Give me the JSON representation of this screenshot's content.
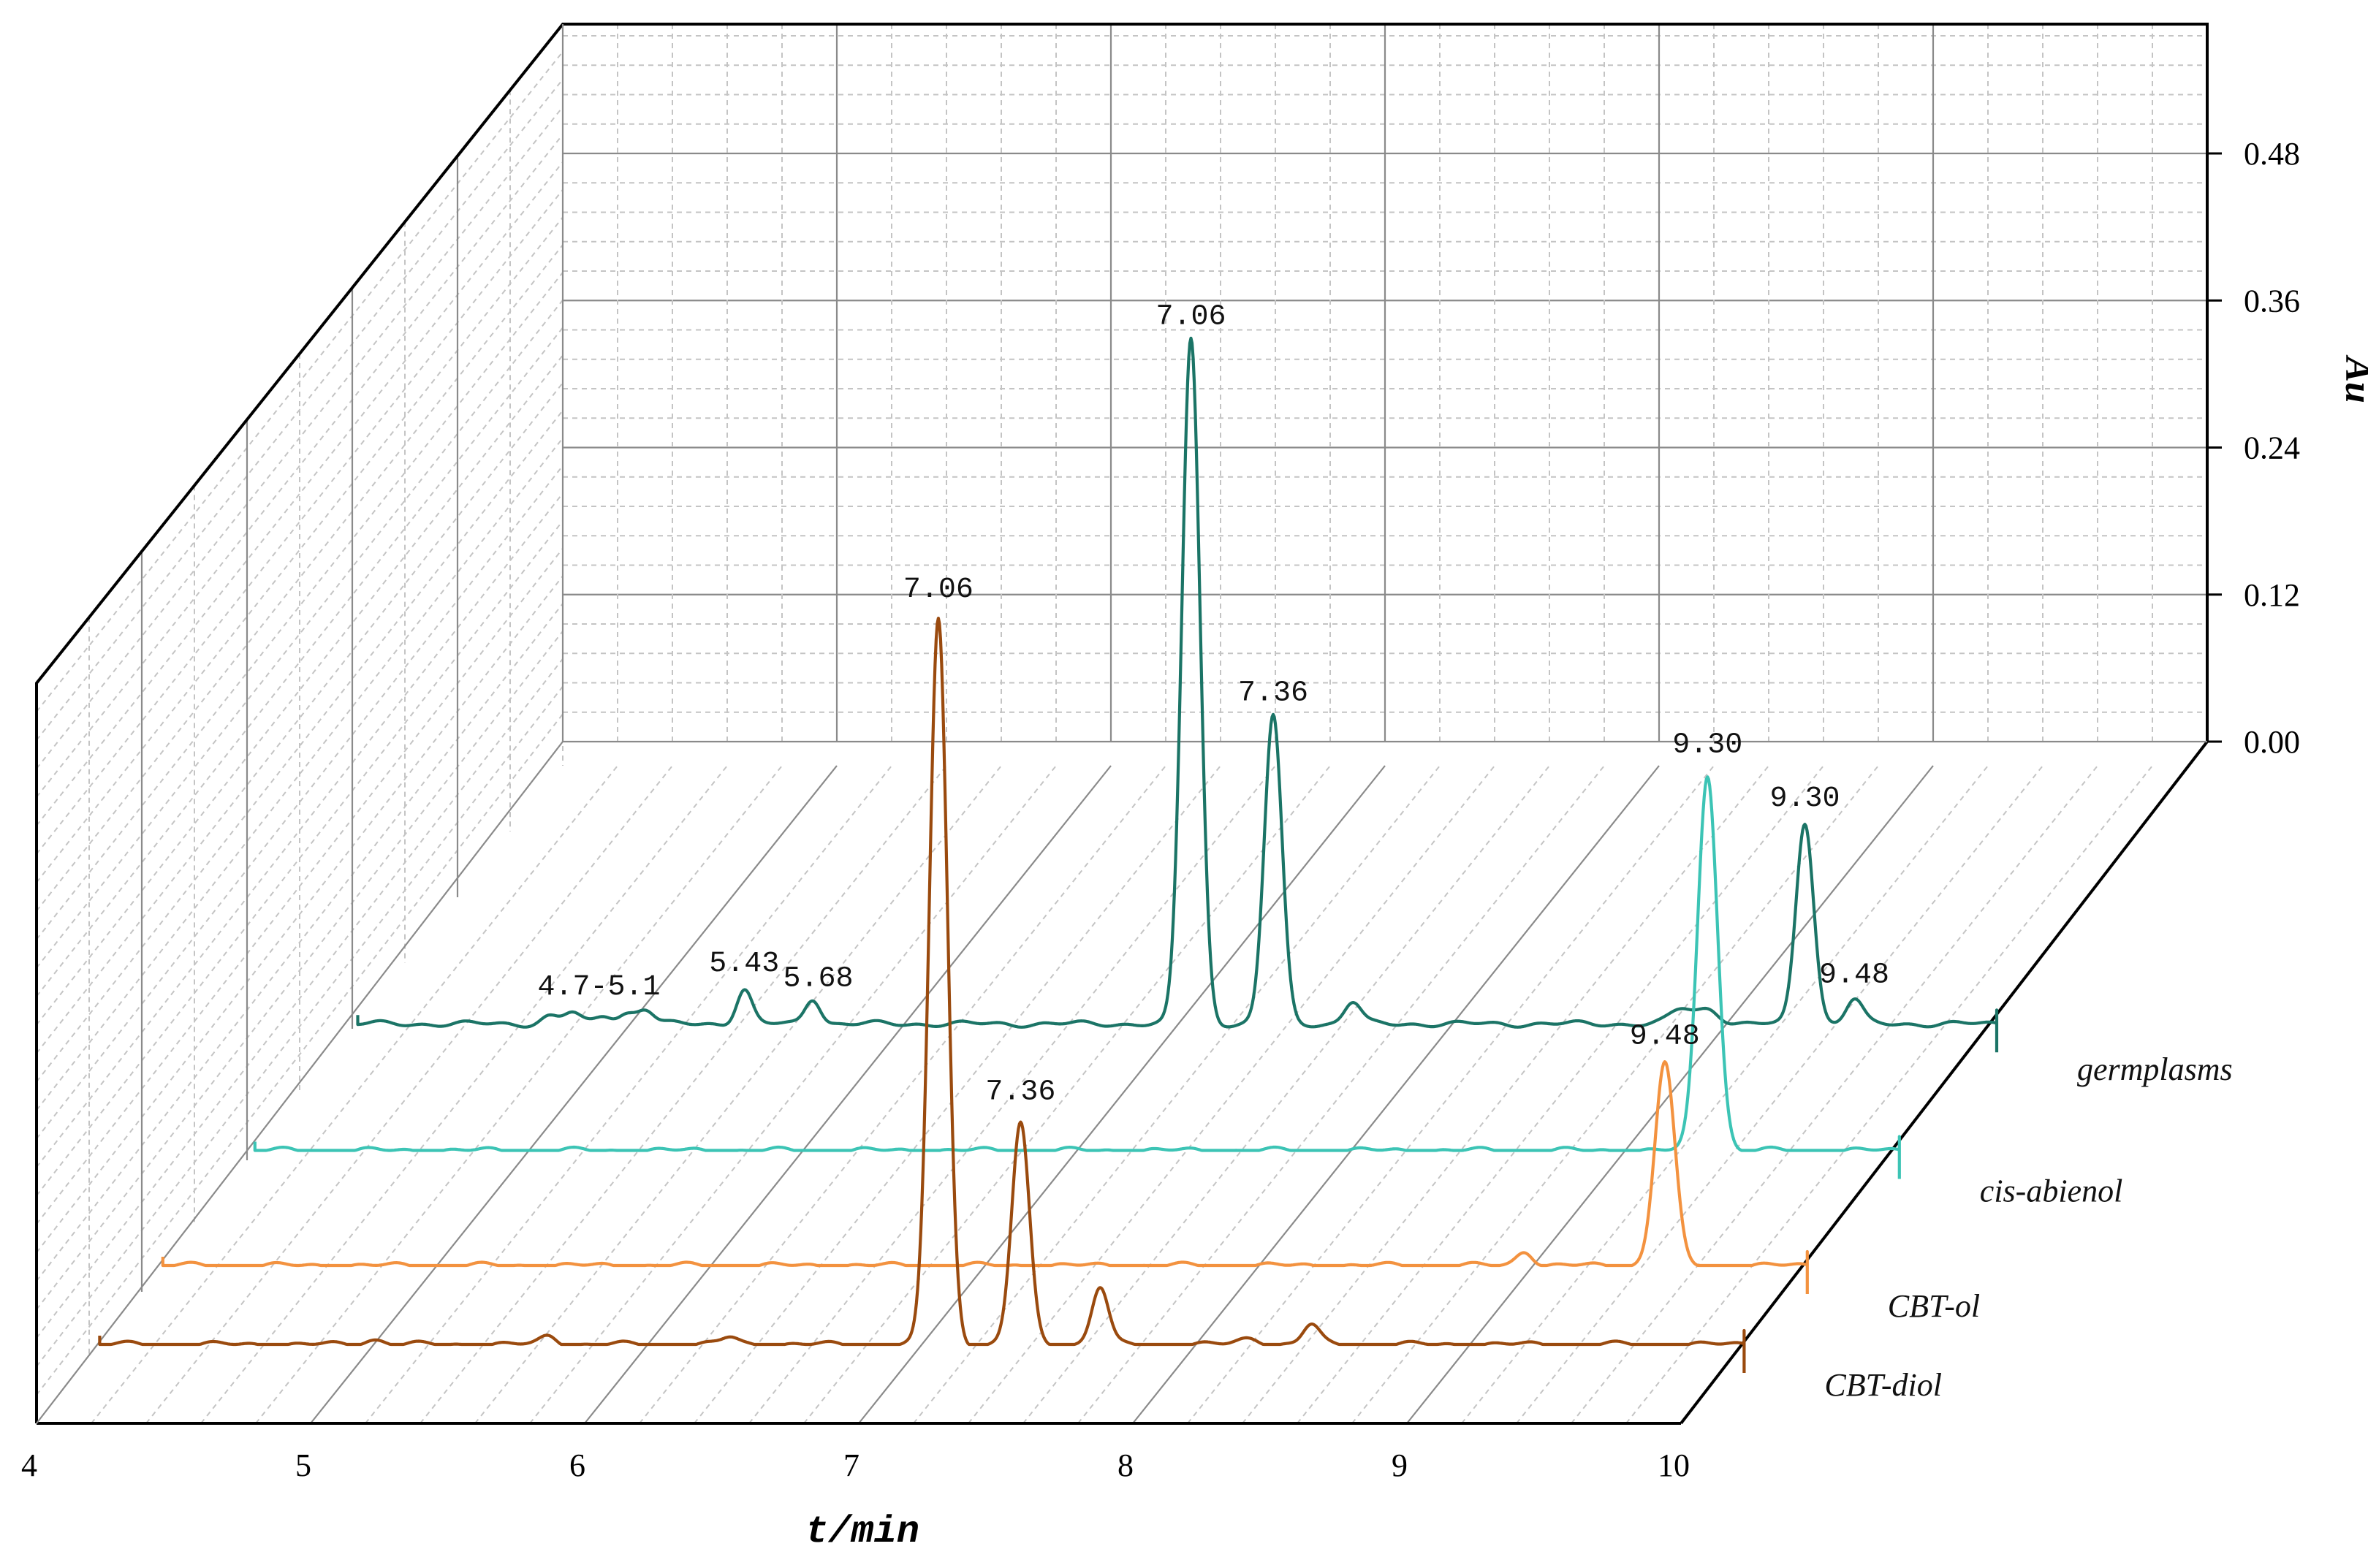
{
  "chart_data": {
    "type": "line",
    "view": "3D waterfall chromatogram",
    "xlabel": "t/min",
    "ylabel": "Au",
    "xlim": [
      4,
      10
    ],
    "ylim": [
      0,
      0.48
    ],
    "x_ticks": [
      "4",
      "5",
      "6",
      "7",
      "8",
      "9",
      "10"
    ],
    "y_ticks": [
      "0.00",
      "0.12",
      "0.24",
      "0.36",
      "0.48"
    ],
    "series_order_front_to_back": [
      "CBT-diol",
      "CBT-ol",
      "cis-abienol",
      "germplasms"
    ],
    "series": [
      {
        "name": "germplasms",
        "color": "#1b7466",
        "baseline": 0.004,
        "end_x": 10.0,
        "peaks": [
          {
            "x": 4.72,
            "h": 0.006,
            "w": 0.03
          },
          {
            "x": 4.8,
            "h": 0.009,
            "w": 0.03
          },
          {
            "x": 4.92,
            "h": 0.007,
            "w": 0.03
          },
          {
            "x": 5.0,
            "h": 0.008,
            "w": 0.03
          },
          {
            "x": 5.07,
            "h": 0.012,
            "w": 0.03
          },
          {
            "x": 5.43,
            "h": 0.028,
            "w": 0.028
          },
          {
            "x": 5.68,
            "h": 0.021,
            "w": 0.028
          },
          {
            "x": 7.06,
            "h": 0.56,
            "w": 0.033
          },
          {
            "x": 7.36,
            "h": 0.252,
            "w": 0.032
          },
          {
            "x": 7.65,
            "h": 0.018,
            "w": 0.03
          },
          {
            "x": 9.3,
            "h": 0.165,
            "w": 0.032
          },
          {
            "x": 9.48,
            "h": 0.02,
            "w": 0.03
          },
          {
            "x": 8.85,
            "h": 0.012,
            "w": 0.04
          },
          {
            "x": 8.95,
            "h": 0.012,
            "w": 0.04
          }
        ],
        "peak_labels": [
          {
            "text": "4.7-5.1",
            "x": 4.9,
            "y": 0.028
          },
          {
            "text": "5.43",
            "x": 5.43,
            "y": 0.047
          },
          {
            "text": "5.68",
            "x": 5.7,
            "y": 0.035
          },
          {
            "text": "7.06",
            "x": 7.06,
            "y": 0.575
          },
          {
            "text": "7.36",
            "x": 7.36,
            "y": 0.268
          },
          {
            "text": "9.30",
            "x": 9.3,
            "y": 0.182
          },
          {
            "text": "9.48",
            "x": 9.48,
            "y": 0.038
          }
        ]
      },
      {
        "name": "cis-abienol",
        "color": "#3cc4b5",
        "baseline": 0.0,
        "end_x": 10.0,
        "peaks": [
          {
            "x": 9.3,
            "h": 0.307,
            "w": 0.036
          }
        ],
        "peak_labels": [
          {
            "text": "9.30",
            "x": 9.3,
            "y": 0.325
          }
        ]
      },
      {
        "name": "CBT-ol",
        "color": "#f3923f",
        "baseline": 0.0,
        "end_x": 10.0,
        "peaks": [
          {
            "x": 8.97,
            "h": 0.012,
            "w": 0.03
          },
          {
            "x": 9.48,
            "h": 0.166,
            "w": 0.036
          }
        ],
        "peak_labels": [
          {
            "text": "9.48",
            "x": 9.48,
            "y": 0.181
          }
        ]
      },
      {
        "name": "CBT-diol",
        "color": "#9a4a0e",
        "baseline": 0.0,
        "end_x": 10.0,
        "peaks": [
          {
            "x": 5.0,
            "h": 0.004,
            "w": 0.04
          },
          {
            "x": 5.64,
            "h": 0.007,
            "w": 0.03
          },
          {
            "x": 6.3,
            "h": 0.006,
            "w": 0.03
          },
          {
            "x": 7.06,
            "h": 0.593,
            "w": 0.033
          },
          {
            "x": 7.36,
            "h": 0.181,
            "w": 0.032
          },
          {
            "x": 7.65,
            "h": 0.047,
            "w": 0.03
          },
          {
            "x": 8.42,
            "h": 0.016,
            "w": 0.03
          },
          {
            "x": 8.2,
            "h": 0.005,
            "w": 0.04
          }
        ],
        "peak_labels": [
          {
            "text": "7.06",
            "x": 7.06,
            "y": 0.61
          },
          {
            "text": "7.36",
            "x": 7.36,
            "y": 0.2
          }
        ]
      }
    ]
  }
}
